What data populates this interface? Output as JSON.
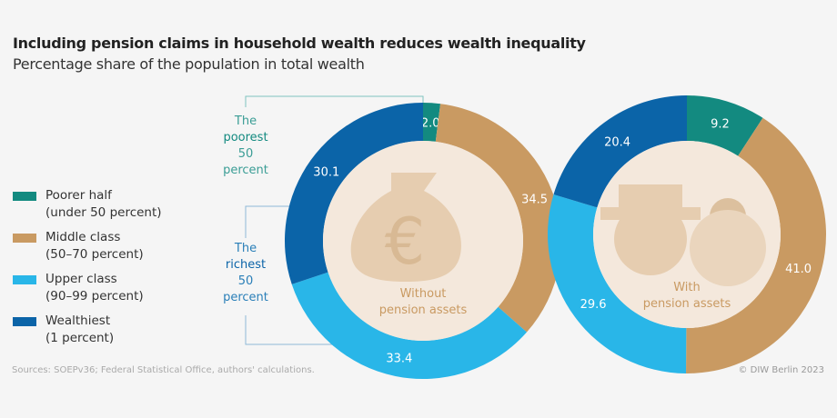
{
  "title": "Including pension claims in household wealth reduces wealth inequality",
  "subtitle": "Percentage share of the population in total wealth",
  "legend": [
    {
      "name": "Poorer half",
      "sub": "(under 50 percent)",
      "color": "#138a80"
    },
    {
      "name": "Middle class",
      "sub": "(50–70 percent)",
      "color": "#c99a62"
    },
    {
      "name": "Upper class",
      "sub": "(90–99 percent)",
      "color": "#29b6e8"
    },
    {
      "name": "Wealthiest",
      "sub": "(1 percent)",
      "color": "#0b64a8"
    }
  ],
  "annotations": {
    "poorest": [
      "The",
      "poorest",
      "50",
      "percent"
    ],
    "richest": [
      "The",
      "richest",
      "50",
      "percent"
    ]
  },
  "source": "Sources: SOEPv36; Federal Statistical Office, authors' calculations.",
  "copyright": "© DIW Berlin 2023",
  "chart_data": [
    {
      "type": "pie",
      "variant": "donut",
      "center_label": [
        "Without",
        "pension assets"
      ],
      "icon": "money-bag-euro",
      "categories": [
        "Poorer half",
        "Middle class",
        "Upper class",
        "Wealthiest"
      ],
      "values": [
        2.0,
        34.5,
        33.4,
        30.1
      ]
    },
    {
      "type": "pie",
      "variant": "donut",
      "center_label": [
        "With",
        "pension assets"
      ],
      "icon": "elderly-couple",
      "categories": [
        "Poorer half",
        "Middle class",
        "Upper class",
        "Wealthiest"
      ],
      "values": [
        9.2,
        41.0,
        29.6,
        20.4
      ]
    }
  ]
}
